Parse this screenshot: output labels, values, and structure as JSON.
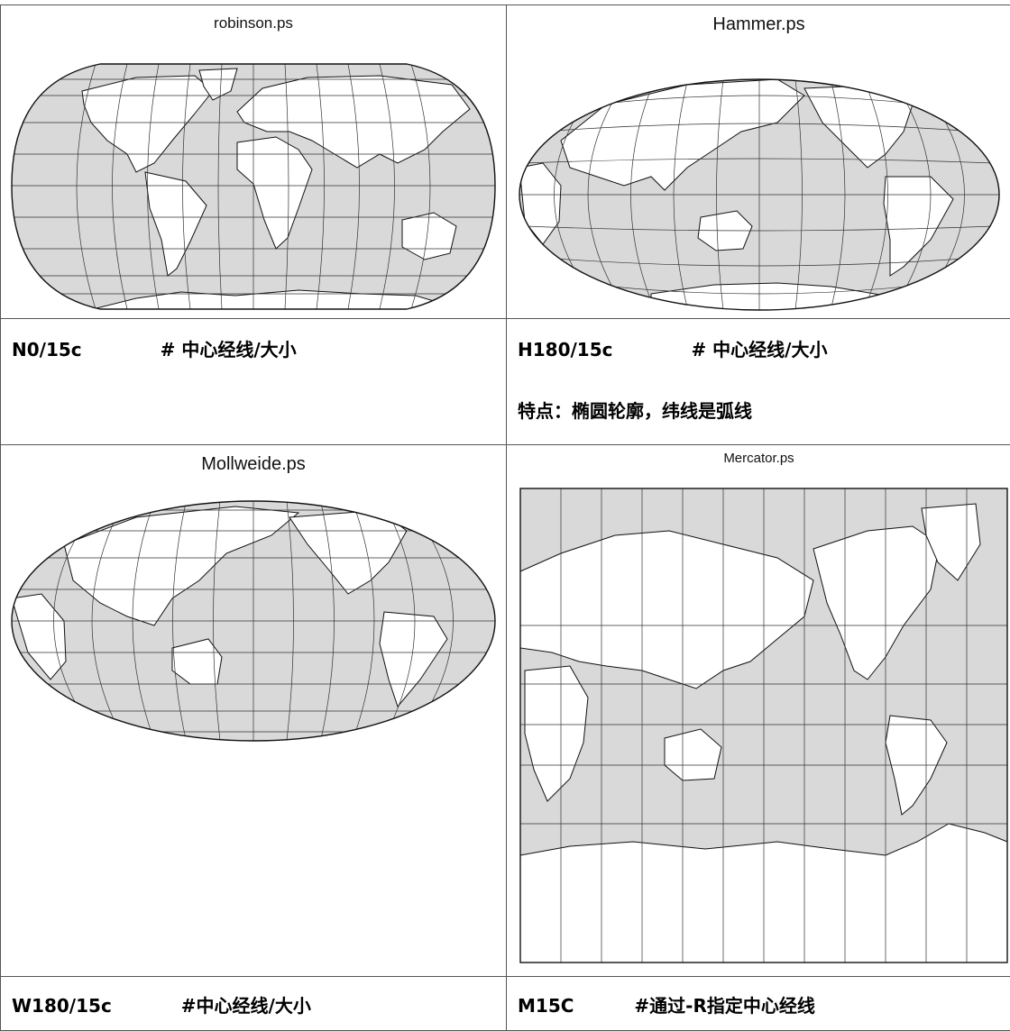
{
  "maps": {
    "robinson": {
      "title": "robinson.ps",
      "caption_code": "N0/15c",
      "caption_comment": "#  中心经线/大小"
    },
    "hammer": {
      "title": "Hammer.ps",
      "caption_code": "H180/15c",
      "caption_comment": "#  中心经线/大小",
      "note": "特点：椭圆轮廓，纬线是弧线"
    },
    "mollweide": {
      "title": "Mollweide.ps",
      "caption_code": "W180/15c",
      "caption_comment": "#中心经线/大小"
    },
    "mercator": {
      "title": "Mercator.ps",
      "caption_code": "M15C",
      "caption_comment": "#通过-R指定中心经线"
    }
  },
  "colors": {
    "ocean": "#d9d9d9",
    "land": "#ffffff",
    "grid": "#333333"
  }
}
